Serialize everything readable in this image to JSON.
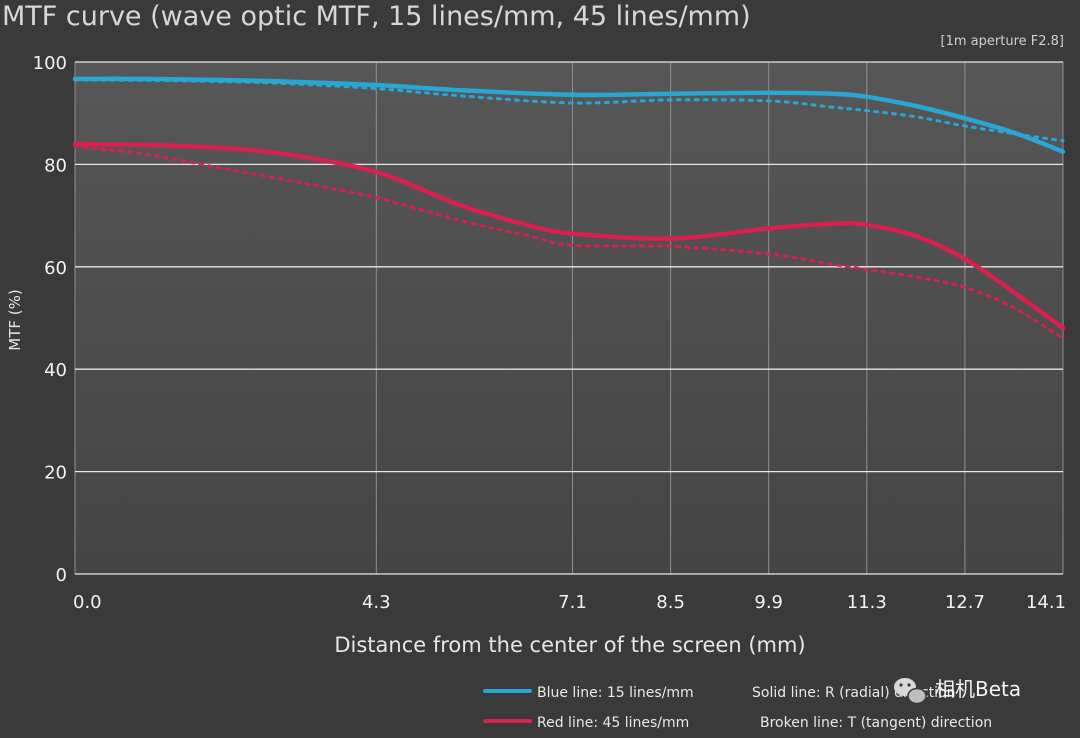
{
  "chart_data": {
    "type": "line",
    "title": "MTF curve (wave optic MTF, 15 lines/mm, 45 lines/mm)",
    "subtitle": "[1m aperture F2.8]",
    "xlabel": "Distance from the center of the screen (mm)",
    "ylabel": "MTF (%)",
    "x_tick_labels": [
      "0.0",
      "4.3",
      "7.1",
      "8.5",
      "9.9",
      "11.3",
      "12.7",
      "14.1"
    ],
    "y_ticks": [
      0,
      20,
      40,
      60,
      80,
      100
    ],
    "xlim": [
      0.0,
      14.1
    ],
    "ylim": [
      0,
      100
    ],
    "grid": true,
    "series": [
      {
        "name": "15 lines/mm R (radial)",
        "color": "#29a6d4",
        "style": "solid",
        "x": [
          0.0,
          1.0,
          2.0,
          3.0,
          4.3,
          5.5,
          7.1,
          8.5,
          9.9,
          10.8,
          11.3,
          12.0,
          12.7,
          13.4,
          14.1
        ],
        "y": [
          96.7,
          96.7,
          96.5,
          96.2,
          95.5,
          94.5,
          93.6,
          93.8,
          94.0,
          93.8,
          93.2,
          91.4,
          89.0,
          86.2,
          82.5
        ]
      },
      {
        "name": "15 lines/mm T (tangent)",
        "color": "#29a6d4",
        "style": "dotted",
        "x": [
          0.0,
          1.0,
          2.0,
          3.0,
          4.3,
          5.5,
          7.1,
          8.5,
          9.9,
          10.8,
          11.3,
          12.0,
          12.7,
          13.4,
          14.1
        ],
        "y": [
          96.5,
          96.4,
          96.2,
          95.8,
          94.8,
          93.4,
          92.0,
          92.6,
          92.4,
          91.2,
          90.5,
          89.3,
          87.5,
          86.0,
          84.6
        ]
      },
      {
        "name": "45 lines/mm R (radial)",
        "color": "#d8214f",
        "style": "solid",
        "x": [
          0.0,
          1.0,
          2.0,
          3.0,
          4.3,
          5.5,
          6.5,
          7.1,
          8.5,
          9.9,
          10.8,
          11.3,
          12.0,
          12.7,
          13.4,
          14.1
        ],
        "y": [
          84.0,
          83.8,
          83.3,
          82.0,
          78.5,
          72.0,
          68.0,
          66.5,
          65.5,
          67.5,
          68.4,
          68.2,
          66.0,
          61.5,
          55.0,
          48.0
        ]
      },
      {
        "name": "45 lines/mm T (tangent)",
        "color": "#d8214f",
        "style": "dotted",
        "x": [
          0.0,
          1.0,
          2.0,
          3.0,
          4.3,
          5.5,
          6.5,
          7.1,
          8.5,
          9.9,
          10.8,
          11.3,
          12.0,
          12.7,
          13.4,
          14.1
        ],
        "y": [
          83.5,
          82.0,
          79.5,
          77.0,
          73.5,
          69.0,
          66.0,
          64.2,
          64.0,
          62.5,
          60.5,
          59.5,
          58.0,
          56.0,
          52.0,
          46.0
        ]
      }
    ],
    "legend": {
      "position": "bottom-right",
      "items": [
        {
          "swatch_color": "#29a6d4",
          "label": "Blue line: 15 lines/mm",
          "style_label": "Solid line: R (radial) direction"
        },
        {
          "swatch_color": "#d8214f",
          "label": "Red line: 45 lines/mm",
          "style_label": "Broken line: T (tangent) direction"
        }
      ]
    }
  },
  "watermark": {
    "text": "相机Beta",
    "icon": "wechat-icon"
  },
  "colors": {
    "plot_bg_top": "#555555",
    "plot_bg_bottom": "#454545",
    "grid": "#8f8f8f",
    "hgrid": "#e8e8e8"
  }
}
